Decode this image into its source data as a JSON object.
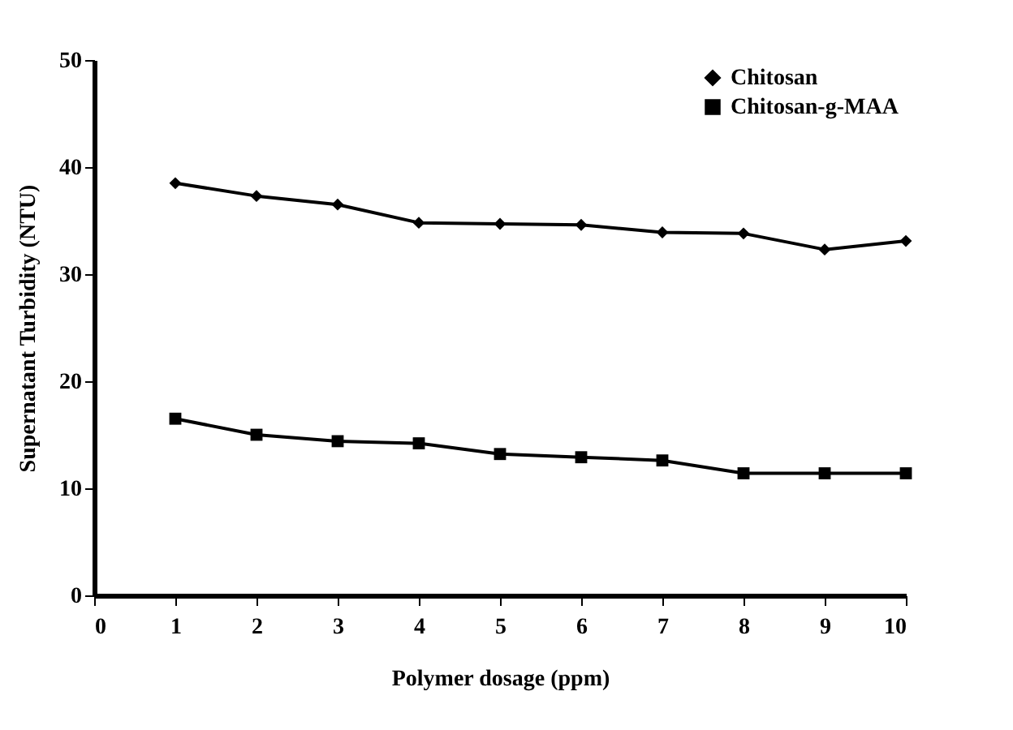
{
  "chart_data": {
    "type": "line",
    "xlabel": "Polymer dosage (ppm)",
    "ylabel": "Supernatant Turbidity (NTU)",
    "x": [
      1,
      2,
      3,
      4,
      5,
      6,
      7,
      8,
      9,
      10
    ],
    "xlim": [
      0,
      10
    ],
    "xticks": [
      0,
      1,
      2,
      3,
      4,
      5,
      6,
      7,
      8,
      9,
      10
    ],
    "ylim": [
      0,
      50
    ],
    "yticks": [
      0,
      10,
      20,
      30,
      40,
      50
    ],
    "grid": false,
    "legend": "top right",
    "series": [
      {
        "name": "Chitosan",
        "color": "#000000",
        "marker": "diamond",
        "values": [
          38.5,
          37.3,
          36.5,
          34.8,
          34.7,
          34.6,
          33.9,
          33.8,
          32.3,
          33.1
        ]
      },
      {
        "name": "Chitosan-g-MAA",
        "color": "#000000",
        "marker": "square",
        "values": [
          16.5,
          15.0,
          14.4,
          14.2,
          13.2,
          12.9,
          12.6,
          11.4,
          11.4,
          11.4
        ]
      }
    ]
  }
}
